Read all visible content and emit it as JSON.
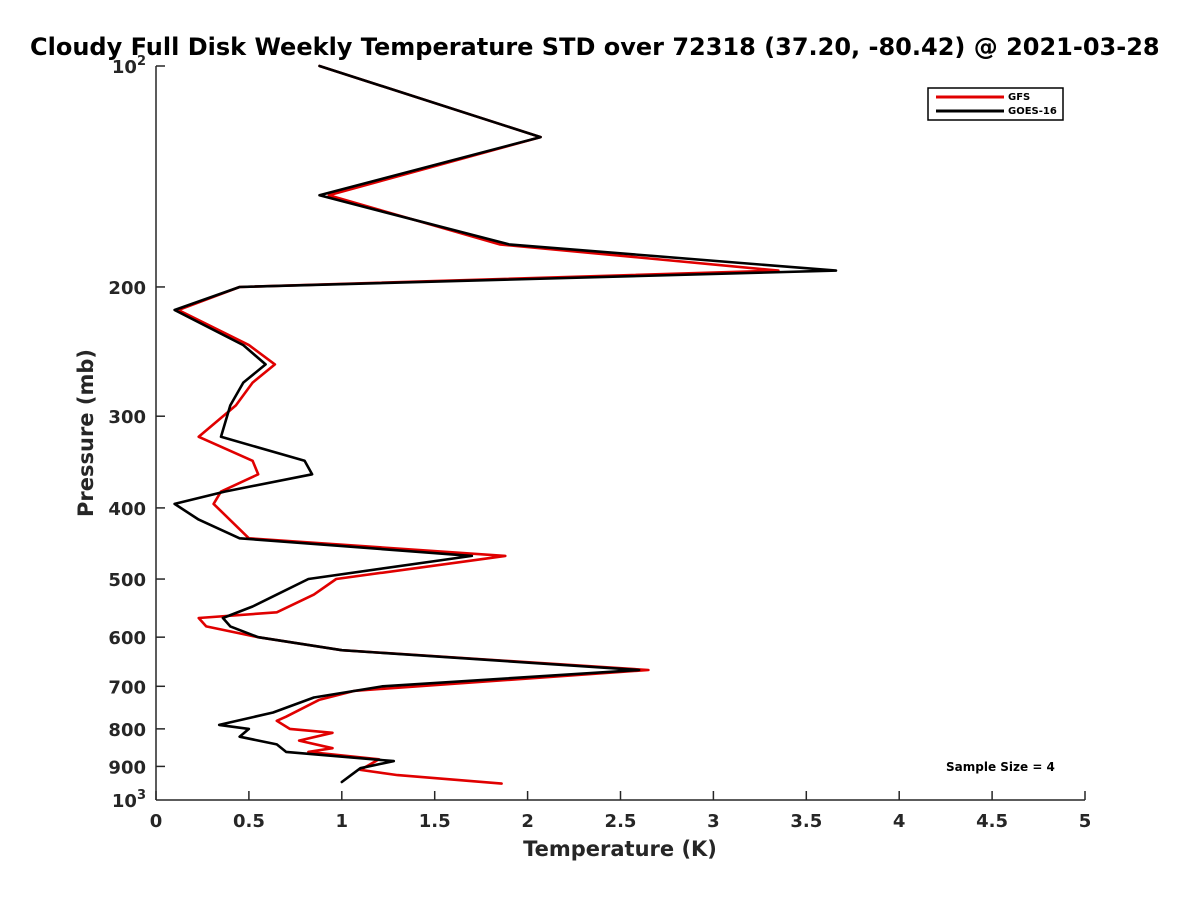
{
  "chart_data": {
    "type": "line",
    "title": "Cloudy Full Disk Weekly Temperature STD over 72318 (37.20, -80.42) @ 2021-03-28",
    "xlabel": "Temperature (K)",
    "ylabel": "Pressure (mb)",
    "xlim": [
      0,
      5
    ],
    "ylim": [
      100,
      1000
    ],
    "yscale": "log",
    "yreversed": true,
    "xticks": [
      "0",
      "0.5",
      "1",
      "1.5",
      "2",
      "2.5",
      "3",
      "3.5",
      "4",
      "4.5",
      "5"
    ],
    "ytick_labels": {
      "top_base": "10",
      "top_exp": "2",
      "bottom_base": "10",
      "bottom_exp": "3",
      "mid": [
        "200",
        "300",
        "400",
        "500",
        "600",
        "700",
        "800",
        "900"
      ]
    },
    "legend_position": "top-right",
    "annotation": "Sample Size = 4",
    "series": [
      {
        "name": "GFS",
        "color": "#e00000",
        "points": [
          [
            0.88,
            100
          ],
          [
            2.07,
            125
          ],
          [
            0.93,
            150
          ],
          [
            1.85,
            175
          ],
          [
            3.35,
            190
          ],
          [
            0.45,
            200
          ],
          [
            0.12,
            215
          ],
          [
            0.5,
            240
          ],
          [
            0.64,
            255
          ],
          [
            0.52,
            270
          ],
          [
            0.43,
            290
          ],
          [
            0.23,
            320
          ],
          [
            0.52,
            345
          ],
          [
            0.55,
            360
          ],
          [
            0.35,
            380
          ],
          [
            0.31,
            395
          ],
          [
            0.5,
            440
          ],
          [
            1.88,
            465
          ],
          [
            0.97,
            500
          ],
          [
            0.85,
            525
          ],
          [
            0.65,
            555
          ],
          [
            0.23,
            565
          ],
          [
            0.27,
            580
          ],
          [
            0.55,
            600
          ],
          [
            1.0,
            625
          ],
          [
            2.65,
            665
          ],
          [
            1.07,
            710
          ],
          [
            0.88,
            730
          ],
          [
            0.7,
            770
          ],
          [
            0.65,
            780
          ],
          [
            0.72,
            800
          ],
          [
            0.95,
            810
          ],
          [
            0.77,
            830
          ],
          [
            0.95,
            850
          ],
          [
            0.82,
            860
          ],
          [
            1.2,
            880
          ],
          [
            1.1,
            910
          ],
          [
            1.3,
            925
          ],
          [
            1.86,
            950
          ]
        ]
      },
      {
        "name": "GOES-16",
        "color": "#000000",
        "points": [
          [
            0.88,
            100
          ],
          [
            2.07,
            125
          ],
          [
            0.88,
            150
          ],
          [
            1.9,
            175
          ],
          [
            3.66,
            190
          ],
          [
            0.45,
            200
          ],
          [
            0.1,
            215
          ],
          [
            0.47,
            240
          ],
          [
            0.59,
            255
          ],
          [
            0.47,
            270
          ],
          [
            0.4,
            290
          ],
          [
            0.35,
            320
          ],
          [
            0.8,
            345
          ],
          [
            0.84,
            360
          ],
          [
            0.37,
            380
          ],
          [
            0.1,
            395
          ],
          [
            0.23,
            415
          ],
          [
            0.45,
            440
          ],
          [
            1.7,
            465
          ],
          [
            0.82,
            500
          ],
          [
            0.65,
            525
          ],
          [
            0.52,
            545
          ],
          [
            0.36,
            565
          ],
          [
            0.4,
            580
          ],
          [
            0.55,
            600
          ],
          [
            1.0,
            625
          ],
          [
            2.6,
            665
          ],
          [
            1.22,
            700
          ],
          [
            0.85,
            725
          ],
          [
            0.63,
            760
          ],
          [
            0.34,
            790
          ],
          [
            0.5,
            800
          ],
          [
            0.45,
            820
          ],
          [
            0.65,
            840
          ],
          [
            0.7,
            860
          ],
          [
            1.28,
            885
          ],
          [
            1.1,
            905
          ],
          [
            1.05,
            925
          ],
          [
            1.0,
            945
          ]
        ]
      }
    ]
  }
}
